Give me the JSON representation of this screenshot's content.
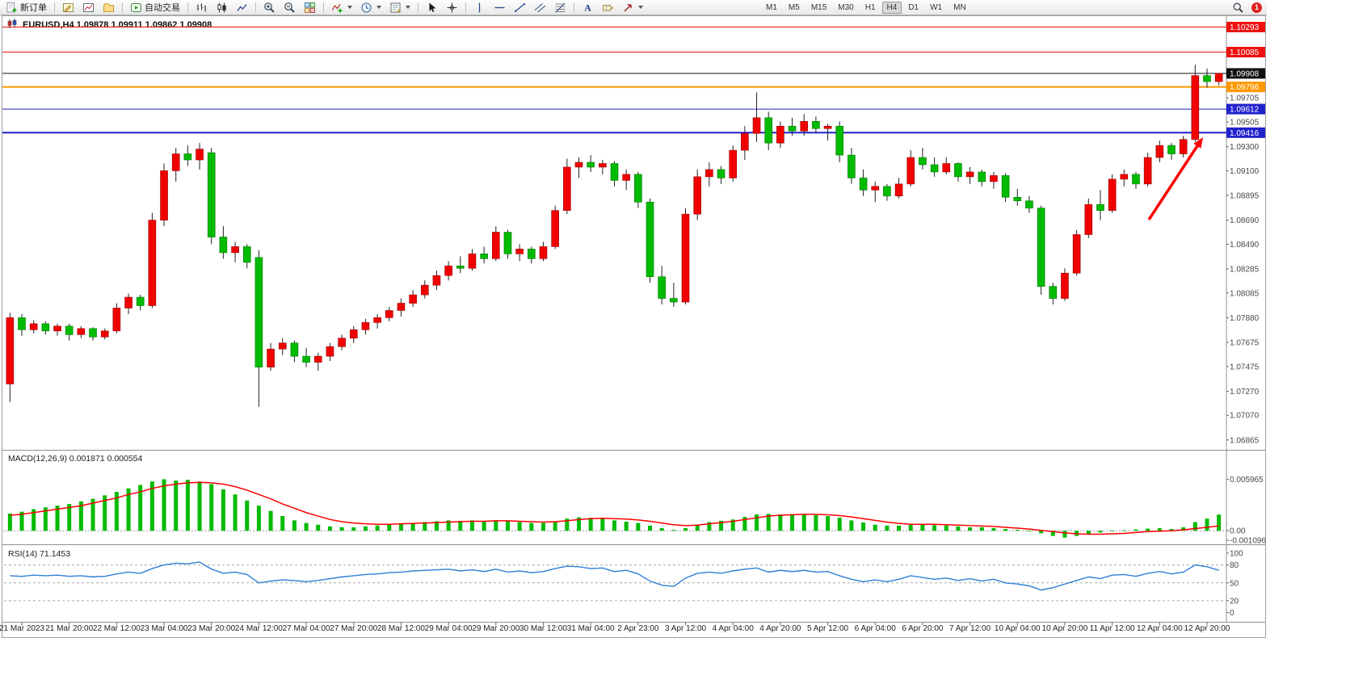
{
  "toolbar": {
    "new_order": "新订单",
    "autotrading": "自动交易",
    "timeframes": [
      "M1",
      "M5",
      "M15",
      "M30",
      "H1",
      "H4",
      "D1",
      "W1",
      "MN"
    ],
    "active_timeframe": "H4",
    "notification_count": "1"
  },
  "chart": {
    "title": "EURUSD,H4  1.09878 1.09911 1.09862 1.09908",
    "symbol": "EURUSD",
    "period": "H4"
  },
  "indicators": {
    "macd_label": "MACD(12,26,9) 0.001871 0.000554",
    "rsi_label": "RSI(14) 71.1453"
  },
  "chart_data": {
    "type": "candlestick",
    "symbol": "EURUSD",
    "period": "H4",
    "price_range": [
      1.0679,
      1.1037
    ],
    "x_label_step": 4,
    "x_label_offset": 1,
    "x_labels": [
      "21 Mar 2023",
      "21 Mar 20:00",
      "22 Mar 12:00",
      "23 Mar 04:00",
      "23 Mar 20:00",
      "24 Mar 12:00",
      "27 Mar 04:00",
      "27 Mar 20:00",
      "28 Mar 12:00",
      "29 Mar 04:00",
      "29 Mar 20:00",
      "30 Mar 12:00",
      "31 Mar 04:00",
      "2 Apr 23:00",
      "3 Apr 12:00",
      "4 Apr 04:00",
      "4 Apr 20:00",
      "5 Apr 12:00",
      "6 Apr 04:00",
      "6 Apr 20:00",
      "7 Apr 12:00",
      "10 Apr 04:00",
      "10 Apr 20:00",
      "11 Apr 12:00",
      "12 Apr 04:00",
      "12 Apr 20:00"
    ],
    "y_ticks": [
      "1.09705",
      "1.09505",
      "1.09300",
      "1.09100",
      "1.08895",
      "1.08690",
      "1.08490",
      "1.08285",
      "1.08085",
      "1.07880",
      "1.07675",
      "1.07475",
      "1.07270",
      "1.07070",
      "1.06865"
    ],
    "price_lines": [
      {
        "price": 1.10293,
        "label": "1.10293",
        "color": "#ee1111",
        "width": 1
      },
      {
        "price": 1.10085,
        "label": "1.10085",
        "color": "#ee1111",
        "width": 1
      },
      {
        "price": 1.09908,
        "label": "1.09908",
        "color": "#111111",
        "width": 1,
        "role": "current-price"
      },
      {
        "price": 1.09796,
        "label": "1.09796",
        "color": "#ff9900",
        "width": 2
      },
      {
        "price": 1.09612,
        "label": "1.09612",
        "color": "#2222cc",
        "width": 1
      },
      {
        "price": 1.09416,
        "label": "1.09416",
        "color": "#2222cc",
        "width": 2
      }
    ],
    "candles": [
      [
        1.0733,
        1.0792,
        1.0718,
        1.0788
      ],
      [
        1.0788,
        1.0791,
        1.0773,
        1.0778
      ],
      [
        1.0778,
        1.0786,
        1.0775,
        1.0783
      ],
      [
        1.0783,
        1.0785,
        1.0774,
        1.0777
      ],
      [
        1.0777,
        1.0783,
        1.0773,
        1.0781
      ],
      [
        1.0781,
        1.0783,
        1.0769,
        1.0774
      ],
      [
        1.0774,
        1.0781,
        1.0771,
        1.0779
      ],
      [
        1.0779,
        1.078,
        1.0769,
        1.0772
      ],
      [
        1.0772,
        1.0779,
        1.077,
        1.0777
      ],
      [
        1.0777,
        1.08,
        1.0775,
        1.0796
      ],
      [
        1.0796,
        1.0808,
        1.0791,
        1.0805
      ],
      [
        1.0805,
        1.0807,
        1.0794,
        1.0798
      ],
      [
        1.0798,
        1.0875,
        1.0796,
        1.0869
      ],
      [
        1.0869,
        1.0916,
        1.0864,
        1.091
      ],
      [
        1.091,
        1.0929,
        1.0901,
        1.0924
      ],
      [
        1.0924,
        1.0931,
        1.0914,
        1.0919
      ],
      [
        1.0919,
        1.0933,
        1.0911,
        1.0928
      ],
      [
        1.0925,
        1.0929,
        1.0849,
        1.0855
      ],
      [
        1.0855,
        1.0864,
        1.0837,
        1.0842
      ],
      [
        1.0842,
        1.0851,
        1.0834,
        1.0847
      ],
      [
        1.0847,
        1.0849,
        1.0829,
        1.0834
      ],
      [
        1.0838,
        1.0844,
        1.0714,
        1.0747
      ],
      [
        1.0747,
        1.0767,
        1.0744,
        1.0762
      ],
      [
        1.0762,
        1.0771,
        1.0757,
        1.0767
      ],
      [
        1.0767,
        1.0769,
        1.0751,
        1.0756
      ],
      [
        1.0756,
        1.0763,
        1.0747,
        1.0751
      ],
      [
        1.0751,
        1.0759,
        1.0744,
        1.0756
      ],
      [
        1.0756,
        1.0767,
        1.0752,
        1.0764
      ],
      [
        1.0764,
        1.0774,
        1.0761,
        1.0771
      ],
      [
        1.0771,
        1.0781,
        1.0767,
        1.0778
      ],
      [
        1.0778,
        1.0787,
        1.0774,
        1.0784
      ],
      [
        1.0784,
        1.0791,
        1.0779,
        1.0788
      ],
      [
        1.0788,
        1.0797,
        1.0785,
        1.0794
      ],
      [
        1.0794,
        1.0804,
        1.0789,
        1.08
      ],
      [
        1.08,
        1.0811,
        1.0797,
        1.0807
      ],
      [
        1.0807,
        1.0819,
        1.0804,
        1.0815
      ],
      [
        1.0815,
        1.0827,
        1.0811,
        1.0823
      ],
      [
        1.0823,
        1.0835,
        1.0819,
        1.0831
      ],
      [
        1.0831,
        1.0839,
        1.0825,
        1.0829
      ],
      [
        1.0829,
        1.0845,
        1.0827,
        1.0841
      ],
      [
        1.0841,
        1.0847,
        1.0833,
        1.0837
      ],
      [
        1.0837,
        1.0864,
        1.0835,
        1.0859
      ],
      [
        1.0859,
        1.0861,
        1.0837,
        1.0841
      ],
      [
        1.0841,
        1.0849,
        1.0835,
        1.0845
      ],
      [
        1.0845,
        1.0847,
        1.0833,
        1.0837
      ],
      [
        1.0837,
        1.0851,
        1.0835,
        1.0847
      ],
      [
        1.0847,
        1.0881,
        1.0845,
        1.0877
      ],
      [
        1.0877,
        1.092,
        1.0874,
        1.0913
      ],
      [
        1.0913,
        1.0921,
        1.0904,
        1.0917
      ],
      [
        1.0917,
        1.0923,
        1.0909,
        1.0913
      ],
      [
        1.0913,
        1.0919,
        1.0907,
        1.0916
      ],
      [
        1.0916,
        1.0918,
        1.0897,
        1.0902
      ],
      [
        1.0902,
        1.0911,
        1.0894,
        1.0907
      ],
      [
        1.0907,
        1.0909,
        1.0879,
        1.0884
      ],
      [
        1.0884,
        1.0887,
        1.0817,
        1.0822
      ],
      [
        1.0822,
        1.0831,
        1.0799,
        1.0804
      ],
      [
        1.0804,
        1.0817,
        1.0797,
        1.0801
      ],
      [
        1.0801,
        1.0879,
        1.0799,
        1.0874
      ],
      [
        1.0874,
        1.0911,
        1.0869,
        1.0905
      ],
      [
        1.0905,
        1.0917,
        1.0897,
        1.0911
      ],
      [
        1.0911,
        1.0914,
        1.0899,
        1.0904
      ],
      [
        1.0904,
        1.0931,
        1.0901,
        1.0927
      ],
      [
        1.0927,
        1.0947,
        1.0919,
        1.0941
      ],
      [
        1.0941,
        1.0975,
        1.0934,
        1.0954
      ],
      [
        1.0954,
        1.0959,
        1.0927,
        1.0933
      ],
      [
        1.0933,
        1.0951,
        1.0929,
        1.0947
      ],
      [
        1.0947,
        1.0954,
        1.0939,
        1.0943
      ],
      [
        1.0943,
        1.0957,
        1.0939,
        1.0951
      ],
      [
        1.0951,
        1.0955,
        1.0941,
        1.0945
      ],
      [
        1.0945,
        1.0949,
        1.0935,
        1.0947
      ],
      [
        1.0947,
        1.0951,
        1.0917,
        1.0923
      ],
      [
        1.0923,
        1.0929,
        1.0899,
        1.0904
      ],
      [
        1.0904,
        1.0911,
        1.0889,
        1.0894
      ],
      [
        1.0894,
        1.0901,
        1.0884,
        1.0897
      ],
      [
        1.0897,
        1.0899,
        1.0885,
        1.0889
      ],
      [
        1.0889,
        1.0904,
        1.0887,
        1.0899
      ],
      [
        1.0899,
        1.0927,
        1.0897,
        1.0921
      ],
      [
        1.0921,
        1.0929,
        1.0911,
        1.0915
      ],
      [
        1.0915,
        1.0921,
        1.0905,
        1.0909
      ],
      [
        1.0909,
        1.0921,
        1.0907,
        1.0916
      ],
      [
        1.0916,
        1.0917,
        1.0901,
        1.0905
      ],
      [
        1.0905,
        1.0913,
        1.0899,
        1.0909
      ],
      [
        1.0909,
        1.0911,
        1.0897,
        1.0901
      ],
      [
        1.0901,
        1.0909,
        1.0895,
        1.0906
      ],
      [
        1.0906,
        1.0908,
        1.0884,
        1.0888
      ],
      [
        1.0888,
        1.0895,
        1.0881,
        1.0885
      ],
      [
        1.0885,
        1.0889,
        1.0875,
        1.0879
      ],
      [
        1.0879,
        1.0881,
        1.0807,
        1.0814
      ],
      [
        1.0814,
        1.0817,
        1.0799,
        1.0804
      ],
      [
        1.0804,
        1.0829,
        1.0802,
        1.0825
      ],
      [
        1.0825,
        1.0861,
        1.0823,
        1.0857
      ],
      [
        1.0857,
        1.0887,
        1.0854,
        1.0882
      ],
      [
        1.0882,
        1.0894,
        1.0869,
        1.0877
      ],
      [
        1.0877,
        1.0907,
        1.0875,
        1.0903
      ],
      [
        1.0903,
        1.0911,
        1.0897,
        1.0907
      ],
      [
        1.0907,
        1.0909,
        1.0895,
        1.0899
      ],
      [
        1.0899,
        1.0925,
        1.0897,
        1.0921
      ],
      [
        1.0921,
        1.0935,
        1.0917,
        1.0931
      ],
      [
        1.0931,
        1.0933,
        1.0919,
        1.0924
      ],
      [
        1.0924,
        1.0939,
        1.0921,
        1.0936
      ],
      [
        1.0936,
        1.0998,
        1.0934,
        1.0989
      ],
      [
        1.0989,
        1.0995,
        1.0979,
        1.0984
      ],
      [
        1.0984,
        1.09911,
        1.0981,
        1.09908
      ]
    ],
    "macd": {
      "params": "12,26,9",
      "current_macd": 0.001871,
      "current_signal": 0.000554,
      "y_ticks": [
        "0.005965",
        "0.00",
        "-0.001096"
      ],
      "histogram": [
        0.002,
        0.0022,
        0.0025,
        0.0027,
        0.0029,
        0.0031,
        0.0034,
        0.0037,
        0.0041,
        0.0045,
        0.0049,
        0.0053,
        0.0057,
        0.00596,
        0.0058,
        0.0059,
        0.0057,
        0.0054,
        0.0048,
        0.0042,
        0.0035,
        0.0029,
        0.0023,
        0.0017,
        0.0012,
        0.0009,
        0.0007,
        0.0005,
        0.0004,
        0.0004,
        0.0005,
        0.0006,
        0.0007,
        0.0008,
        0.0009,
        0.001,
        0.0011,
        0.0012,
        0.00115,
        0.0012,
        0.0011,
        0.0012,
        0.0011,
        0.001,
        0.0009,
        0.0009,
        0.0011,
        0.0014,
        0.00155,
        0.0015,
        0.0014,
        0.0012,
        0.00105,
        0.0009,
        0.0006,
        0.0003,
        0.0001,
        0.0003,
        0.0007,
        0.001,
        0.00115,
        0.0013,
        0.0016,
        0.0019,
        0.00195,
        0.0019,
        0.0019,
        0.00185,
        0.0018,
        0.0017,
        0.0015,
        0.0012,
        0.00095,
        0.0007,
        0.0006,
        0.0006,
        0.0007,
        0.00075,
        0.00065,
        0.0006,
        0.0005,
        0.0004,
        0.0004,
        0.0003,
        0.0002,
        0.0001,
        0.0,
        -0.0003,
        -0.0006,
        -0.0008,
        -0.0006,
        -0.0004,
        -0.0002,
        -5e-05,
        5e-05,
        0.00015,
        0.00025,
        0.0003,
        0.0002,
        0.0004,
        0.001,
        0.0014,
        0.00187
      ],
      "signal": [
        0.0018,
        0.0019,
        0.0021,
        0.0023,
        0.0025,
        0.0027,
        0.0029,
        0.0032,
        0.0035,
        0.0038,
        0.0042,
        0.0045,
        0.0049,
        0.0052,
        0.0054,
        0.00555,
        0.0056,
        0.00555,
        0.0054,
        0.0051,
        0.0047,
        0.0042,
        0.0037,
        0.0031,
        0.0026,
        0.0021,
        0.0017,
        0.0013,
        0.00105,
        0.0009,
        0.0008,
        0.00075,
        0.00075,
        0.0008,
        0.00085,
        0.0009,
        0.00095,
        0.001,
        0.00105,
        0.0011,
        0.0011,
        0.00115,
        0.00115,
        0.0011,
        0.00105,
        0.001,
        0.00105,
        0.00115,
        0.0013,
        0.0014,
        0.00145,
        0.0014,
        0.00135,
        0.00125,
        0.0011,
        0.0009,
        0.0007,
        0.0006,
        0.00065,
        0.0008,
        0.00095,
        0.0011,
        0.0013,
        0.0015,
        0.0017,
        0.0018,
        0.00185,
        0.0019,
        0.0019,
        0.00185,
        0.00175,
        0.0016,
        0.0014,
        0.0012,
        0.001,
        0.00085,
        0.00075,
        0.00075,
        0.00075,
        0.0007,
        0.00065,
        0.0006,
        0.00055,
        0.0005,
        0.0004,
        0.0003,
        0.0002,
        5e-05,
        -0.0001,
        -0.00025,
        -0.00035,
        -0.0004,
        -0.0004,
        -0.00035,
        -0.0003,
        -0.0002,
        -0.0001,
        -5e-05,
        0.0,
        0.0001,
        0.00025,
        0.0004,
        0.000554
      ]
    },
    "rsi": {
      "period": 14,
      "current": 71.1453,
      "y_ticks": [
        "100",
        "80",
        "50",
        "20",
        "0"
      ],
      "levels": [
        80,
        50,
        20
      ],
      "values": [
        62,
        61,
        63,
        62,
        63,
        61,
        62,
        60,
        61,
        65,
        68,
        66,
        74,
        80,
        83,
        82,
        85,
        73,
        66,
        68,
        64,
        50,
        53,
        55,
        54,
        52,
        54,
        57,
        60,
        62,
        64,
        65,
        67,
        68,
        70,
        71,
        72,
        73,
        70,
        72,
        69,
        73,
        68,
        70,
        67,
        69,
        74,
        78,
        77,
        74,
        75,
        69,
        71,
        65,
        53,
        46,
        44,
        58,
        66,
        68,
        66,
        70,
        73,
        75,
        68,
        71,
        69,
        71,
        68,
        69,
        62,
        56,
        52,
        55,
        52,
        56,
        62,
        59,
        56,
        58,
        54,
        57,
        53,
        56,
        50,
        48,
        45,
        38,
        42,
        48,
        54,
        60,
        57,
        63,
        64,
        61,
        66,
        69,
        65,
        68,
        80,
        77,
        71.1
      ]
    },
    "annotations": [
      {
        "type": "arrow",
        "from": [
          1422,
          272
        ],
        "to": [
          1489,
          170
        ],
        "color": "#ff0000",
        "width": 3.5
      }
    ],
    "colors": {
      "bull": "#f20000",
      "bear": "#00bb00",
      "wick": "#222222",
      "macd_hist": "#00bb00",
      "macd_signal": "#ff0000",
      "rsi_line": "#2f7ed8",
      "background": "#ffffff"
    }
  }
}
